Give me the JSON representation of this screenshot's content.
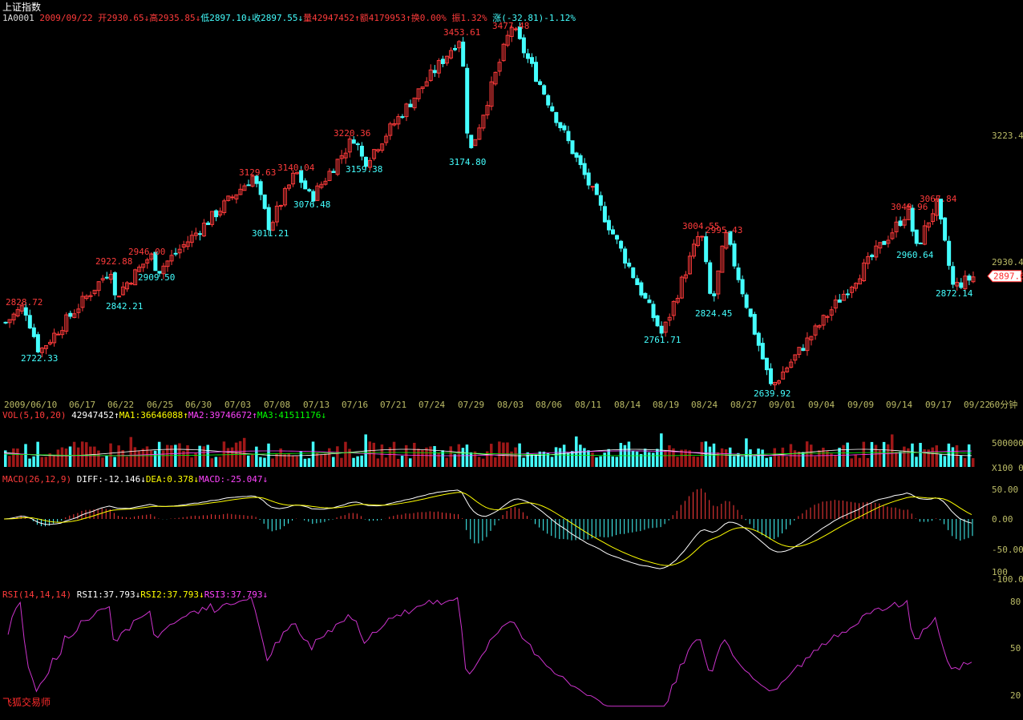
{
  "header": {
    "title": "上证指数",
    "code": "1A0001",
    "date": "2009/09/22",
    "open": "开2930.65↓",
    "high": "高2935.85↓",
    "low": "低2897.10↓",
    "close": "收2897.55↓",
    "volume": "量42947452↑",
    "amount": "额4179953↑",
    "turnover": "换0.00%",
    "amplitude": "振1.32%",
    "change": "涨(-32.81)-1.12%"
  },
  "colors": {
    "up": "#ff3b3b",
    "down": "#44ffff",
    "ma1": "#ffffff",
    "ma2": "#ff44ff",
    "ma3": "#00ff00",
    "diff": "#ffffff",
    "dea": "#ffff00",
    "rsi": "#cc33cc",
    "axis": "#bbbb66",
    "price_tag": "#ff2b2b"
  },
  "price_panel": {
    "right_labels": [
      "3223.4",
      "2930.4"
    ],
    "last_price": "2897.6",
    "peak_labels": [
      {
        "text": "2828.72",
        "kind": "high"
      },
      {
        "text": "2722.33",
        "kind": "low"
      },
      {
        "text": "2922.88",
        "kind": "high"
      },
      {
        "text": "2842.21",
        "kind": "low"
      },
      {
        "text": "2946.00",
        "kind": "high"
      },
      {
        "text": "2909.50",
        "kind": "low"
      },
      {
        "text": "3129.63",
        "kind": "high"
      },
      {
        "text": "3011.21",
        "kind": "low"
      },
      {
        "text": "3140.04",
        "kind": "high"
      },
      {
        "text": "3076.48",
        "kind": "low"
      },
      {
        "text": "3220.36",
        "kind": "high"
      },
      {
        "text": "3159.38",
        "kind": "low"
      },
      {
        "text": "3453.61",
        "kind": "high"
      },
      {
        "text": "3174.80",
        "kind": "low"
      },
      {
        "text": "3477.48",
        "kind": "high"
      },
      {
        "text": "2761.71",
        "kind": "low"
      },
      {
        "text": "3004.55",
        "kind": "high"
      },
      {
        "text": "2995.43",
        "kind": "high"
      },
      {
        "text": "2824.45",
        "kind": "low"
      },
      {
        "text": "2639.92",
        "kind": "low"
      },
      {
        "text": "3049.96",
        "kind": "high"
      },
      {
        "text": "3067.84",
        "kind": "high"
      },
      {
        "text": "2960.64",
        "kind": "low"
      },
      {
        "text": "2872.14",
        "kind": "low"
      }
    ]
  },
  "date_axis": {
    "labels": [
      "2009/06/10",
      "06/17",
      "06/22",
      "06/25",
      "06/30",
      "07/03",
      "07/08",
      "07/13",
      "07/16",
      "07/21",
      "07/24",
      "07/29",
      "08/03",
      "08/06",
      "08/11",
      "08/14",
      "08/19",
      "08/24",
      "08/27",
      "09/01",
      "09/04",
      "09/09",
      "09/14",
      "09/17",
      "09/22"
    ],
    "period": "60分钟"
  },
  "volume_panel": {
    "header": {
      "name": "VOL(5,10,20)",
      "value": "42947452↑",
      "ma1": "MA1:36646088↑",
      "ma2": "MA2:39746672↑",
      "ma3": "MA3:41511176↓"
    },
    "right_labels": [
      "500000",
      "X100 0"
    ]
  },
  "macd_panel": {
    "header": {
      "name": "MACD(26,12,9)",
      "diff": "DIFF:-12.146↓",
      "dea": "DEA:0.378↓",
      "macd": "MACD:-25.047↓"
    },
    "right_labels": [
      "50.00",
      "0.00",
      "-50.00",
      "100",
      "-100.0"
    ]
  },
  "rsi_panel": {
    "header": {
      "name": "RSI(14,14,14)",
      "rsi1": "RSI1:37.793↓",
      "rsi2": "RSI2:37.793↓",
      "rsi3": "RSI3:37.793↓"
    },
    "right_labels": [
      "80",
      "50",
      "20"
    ]
  },
  "brand": "飞狐交易师",
  "chart_data": {
    "type": "candlestick",
    "title": "上证指数",
    "x_range": [
      "2009/06/10",
      "2009/09/22"
    ],
    "price_anchors": [
      {
        "label": "start",
        "price": 2790
      },
      {
        "label": "2828.72",
        "price": 2828.72
      },
      {
        "label": "2722.33",
        "price": 2722.33
      },
      {
        "label": "2922.88",
        "price": 2922.88
      },
      {
        "label": "2842.21",
        "price": 2842.21
      },
      {
        "label": "2946.00",
        "price": 2946.0
      },
      {
        "label": "2909.50",
        "price": 2909.5
      },
      {
        "label": "3129.63",
        "price": 3129.63
      },
      {
        "label": "3011.21",
        "price": 3011.21
      },
      {
        "label": "3140.04",
        "price": 3140.04
      },
      {
        "label": "3076.48",
        "price": 3076.48
      },
      {
        "label": "3220.36",
        "price": 3220.36
      },
      {
        "label": "3159.38",
        "price": 3159.38
      },
      {
        "label": "3453.61",
        "price": 3453.61
      },
      {
        "label": "3174.80",
        "price": 3174.8
      },
      {
        "label": "3477.48",
        "price": 3477.48
      },
      {
        "label": "2761.71",
        "price": 2761.71
      },
      {
        "label": "3004.55",
        "price": 3004.55
      },
      {
        "label": "2824.45",
        "price": 2824.45
      },
      {
        "label": "2995.43",
        "price": 2995.43
      },
      {
        "label": "2639.92",
        "price": 2639.92
      },
      {
        "label": "3049.96",
        "price": 3049.96
      },
      {
        "label": "2960.64",
        "price": 2960.64
      },
      {
        "label": "3067.84",
        "price": 3067.84
      },
      {
        "label": "2872.14",
        "price": 2872.14
      },
      {
        "label": "2897.55",
        "price": 2897.55
      }
    ],
    "last_close": 2897.55
  }
}
